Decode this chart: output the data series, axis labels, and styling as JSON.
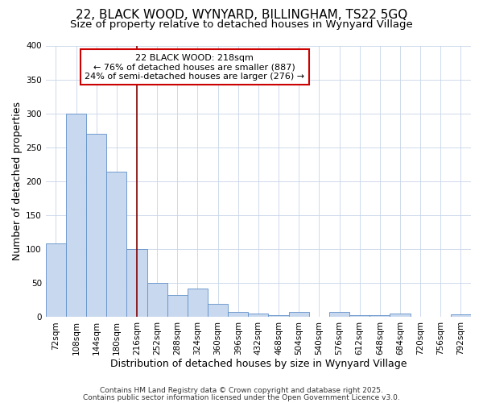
{
  "title_line1": "22, BLACK WOOD, WYNYARD, BILLINGHAM, TS22 5GQ",
  "title_line2": "Size of property relative to detached houses in Wynyard Village",
  "xlabel": "Distribution of detached houses by size in Wynyard Village",
  "ylabel": "Number of detached properties",
  "bar_labels": [
    "72sqm",
    "108sqm",
    "144sqm",
    "180sqm",
    "216sqm",
    "252sqm",
    "288sqm",
    "324sqm",
    "360sqm",
    "396sqm",
    "432sqm",
    "468sqm",
    "504sqm",
    "540sqm",
    "576sqm",
    "612sqm",
    "648sqm",
    "684sqm",
    "720sqm",
    "756sqm",
    "792sqm"
  ],
  "bar_values": [
    108,
    300,
    270,
    214,
    100,
    50,
    32,
    42,
    20,
    7,
    5,
    3,
    7,
    1,
    7,
    3,
    3,
    5,
    1,
    1,
    4
  ],
  "bar_color": "#c8d8ee",
  "bar_edge_color": "#6090c8",
  "property_line_index": 4,
  "annotation_text_line1": "22 BLACK WOOD: 218sqm",
  "annotation_text_line2": "← 76% of detached houses are smaller (887)",
  "annotation_text_line3": "24% of semi-detached houses are larger (276) →",
  "annotation_box_color": "#ffffff",
  "annotation_box_edge_color": "#cc0000",
  "vline_color": "#800000",
  "grid_color": "#c8d4e8",
  "background_color": "#ffffff",
  "fig_background_color": "#ffffff",
  "ylim": [
    0,
    400
  ],
  "yticks": [
    0,
    50,
    100,
    150,
    200,
    250,
    300,
    350,
    400
  ],
  "title_fontsize": 11,
  "subtitle_fontsize": 9.5,
  "axis_label_fontsize": 9,
  "tick_fontsize": 7.5,
  "annotation_fontsize": 8,
  "footer_fontsize": 6.5,
  "footer_text_line1": "Contains HM Land Registry data © Crown copyright and database right 2025.",
  "footer_text_line2": "Contains public sector information licensed under the Open Government Licence v3.0."
}
